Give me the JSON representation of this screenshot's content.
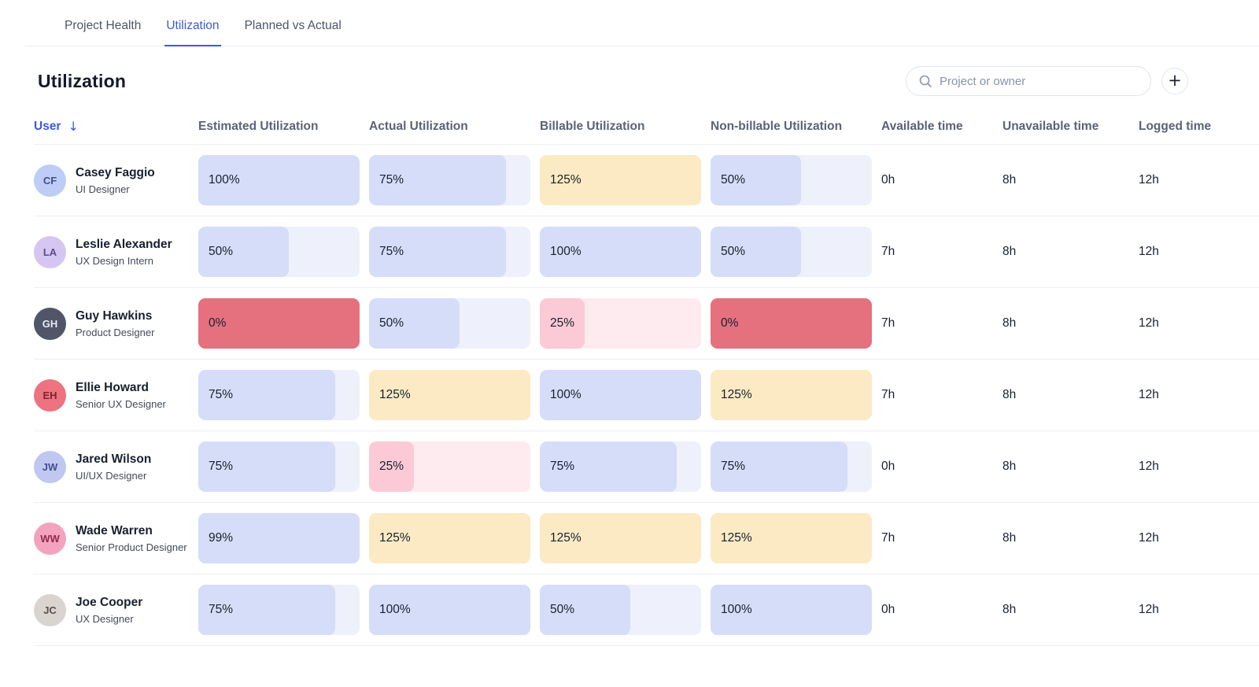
{
  "tabs": [
    {
      "label": "Project Health",
      "active": false
    },
    {
      "label": "Utilization",
      "active": true
    },
    {
      "label": "Planned vs Actual",
      "active": false
    }
  ],
  "page_title": "Utilization",
  "search": {
    "placeholder": "Project or owner"
  },
  "icons": {
    "search": "magnifier-icon",
    "plus_glyph": "+",
    "sort_arrow_glyph": "↓"
  },
  "colors": {
    "accent_blue": "#3b59e3",
    "bar_blue_fill": "#d5ddf9",
    "bar_blue_track": "#eef1fb",
    "bar_yellow": "#fbeac3",
    "bar_red": "#e5717f",
    "bar_pink_fill": "#fbcad6",
    "bar_pink_track": "#fdebef"
  },
  "table": {
    "columns": [
      {
        "label": "User",
        "sorted": true
      },
      {
        "label": "Estimated Utilization",
        "sorted": false
      },
      {
        "label": "Actual Utilization",
        "sorted": false
      },
      {
        "label": "Billable Utilization",
        "sorted": false
      },
      {
        "label": "Non-billable Utilization",
        "sorted": false
      },
      {
        "label": "Available time",
        "sorted": false
      },
      {
        "label": "Unavailable time",
        "sorted": false
      },
      {
        "label": "Logged time",
        "sorted": false
      }
    ],
    "rows": [
      {
        "name": "Casey Faggio",
        "role": "UI Designer",
        "initials": "CF",
        "avatar_bg": "#becdf6",
        "avatar_fg": "#41508f",
        "estimated": {
          "value": "100%",
          "pct": 100,
          "tone": "blue"
        },
        "actual": {
          "value": "75%",
          "pct": 75,
          "tone": "blue"
        },
        "billable": {
          "value": "125%",
          "pct": 125,
          "tone": "yellow"
        },
        "non_billable": {
          "value": "50%",
          "pct": 50,
          "tone": "blue"
        },
        "available": "0h",
        "unavailable": "8h",
        "logged": "12h"
      },
      {
        "name": "Leslie Alexander",
        "role": "UX Design Intern",
        "initials": "LA",
        "avatar_bg": "#d5c6f1",
        "avatar_fg": "#5d4a8f",
        "estimated": {
          "value": "50%",
          "pct": 50,
          "tone": "blue"
        },
        "actual": {
          "value": "75%",
          "pct": 75,
          "tone": "blue"
        },
        "billable": {
          "value": "100%",
          "pct": 100,
          "tone": "blue"
        },
        "non_billable": {
          "value": "50%",
          "pct": 50,
          "tone": "blue"
        },
        "available": "7h",
        "unavailable": "8h",
        "logged": "12h"
      },
      {
        "name": "Guy Hawkins",
        "role": "Product Designer",
        "initials": "GH",
        "avatar_bg": "#50556a",
        "avatar_fg": "#e8eaf2",
        "estimated": {
          "value": "0%",
          "pct": 0,
          "tone": "red"
        },
        "actual": {
          "value": "50%",
          "pct": 50,
          "tone": "blue"
        },
        "billable": {
          "value": "25%",
          "pct": 25,
          "tone": "pink"
        },
        "non_billable": {
          "value": "0%",
          "pct": 0,
          "tone": "red"
        },
        "available": "7h",
        "unavailable": "8h",
        "logged": "12h"
      },
      {
        "name": "Ellie Howard",
        "role": "Senior UX Designer",
        "initials": "EH",
        "avatar_bg": "#ed7380",
        "avatar_fg": "#7c2430",
        "estimated": {
          "value": "75%",
          "pct": 75,
          "tone": "blue"
        },
        "actual": {
          "value": "125%",
          "pct": 125,
          "tone": "yellow"
        },
        "billable": {
          "value": "100%",
          "pct": 100,
          "tone": "blue"
        },
        "non_billable": {
          "value": "125%",
          "pct": 125,
          "tone": "yellow"
        },
        "available": "7h",
        "unavailable": "8h",
        "logged": "12h"
      },
      {
        "name": "Jared Wilson",
        "role": "UI/UX Designer",
        "initials": "JW",
        "avatar_bg": "#c0c7f1",
        "avatar_fg": "#414f8e",
        "estimated": {
          "value": "75%",
          "pct": 75,
          "tone": "blue"
        },
        "actual": {
          "value": "25%",
          "pct": 25,
          "tone": "pink"
        },
        "billable": {
          "value": "75%",
          "pct": 75,
          "tone": "blue"
        },
        "non_billable": {
          "value": "75%",
          "pct": 75,
          "tone": "blue"
        },
        "available": "0h",
        "unavailable": "8h",
        "logged": "12h"
      },
      {
        "name": "Wade Warren",
        "role": "Senior Product Designer",
        "initials": "WW",
        "avatar_bg": "#f3a3be",
        "avatar_fg": "#8f2b4e",
        "estimated": {
          "value": "99%",
          "pct": 99,
          "tone": "blue"
        },
        "actual": {
          "value": "125%",
          "pct": 125,
          "tone": "yellow"
        },
        "billable": {
          "value": "125%",
          "pct": 125,
          "tone": "yellow"
        },
        "non_billable": {
          "value": "125%",
          "pct": 125,
          "tone": "yellow"
        },
        "available": "7h",
        "unavailable": "8h",
        "logged": "12h"
      },
      {
        "name": "Joe Cooper",
        "role": "UX Designer",
        "initials": "JC",
        "avatar_bg": "#d9d4d0",
        "avatar_fg": "#5a4f49",
        "estimated": {
          "value": "75%",
          "pct": 75,
          "tone": "blue"
        },
        "actual": {
          "value": "100%",
          "pct": 100,
          "tone": "blue"
        },
        "billable": {
          "value": "50%",
          "pct": 50,
          "tone": "blue"
        },
        "non_billable": {
          "value": "100%",
          "pct": 100,
          "tone": "blue"
        },
        "available": "0h",
        "unavailable": "8h",
        "logged": "12h"
      }
    ]
  }
}
